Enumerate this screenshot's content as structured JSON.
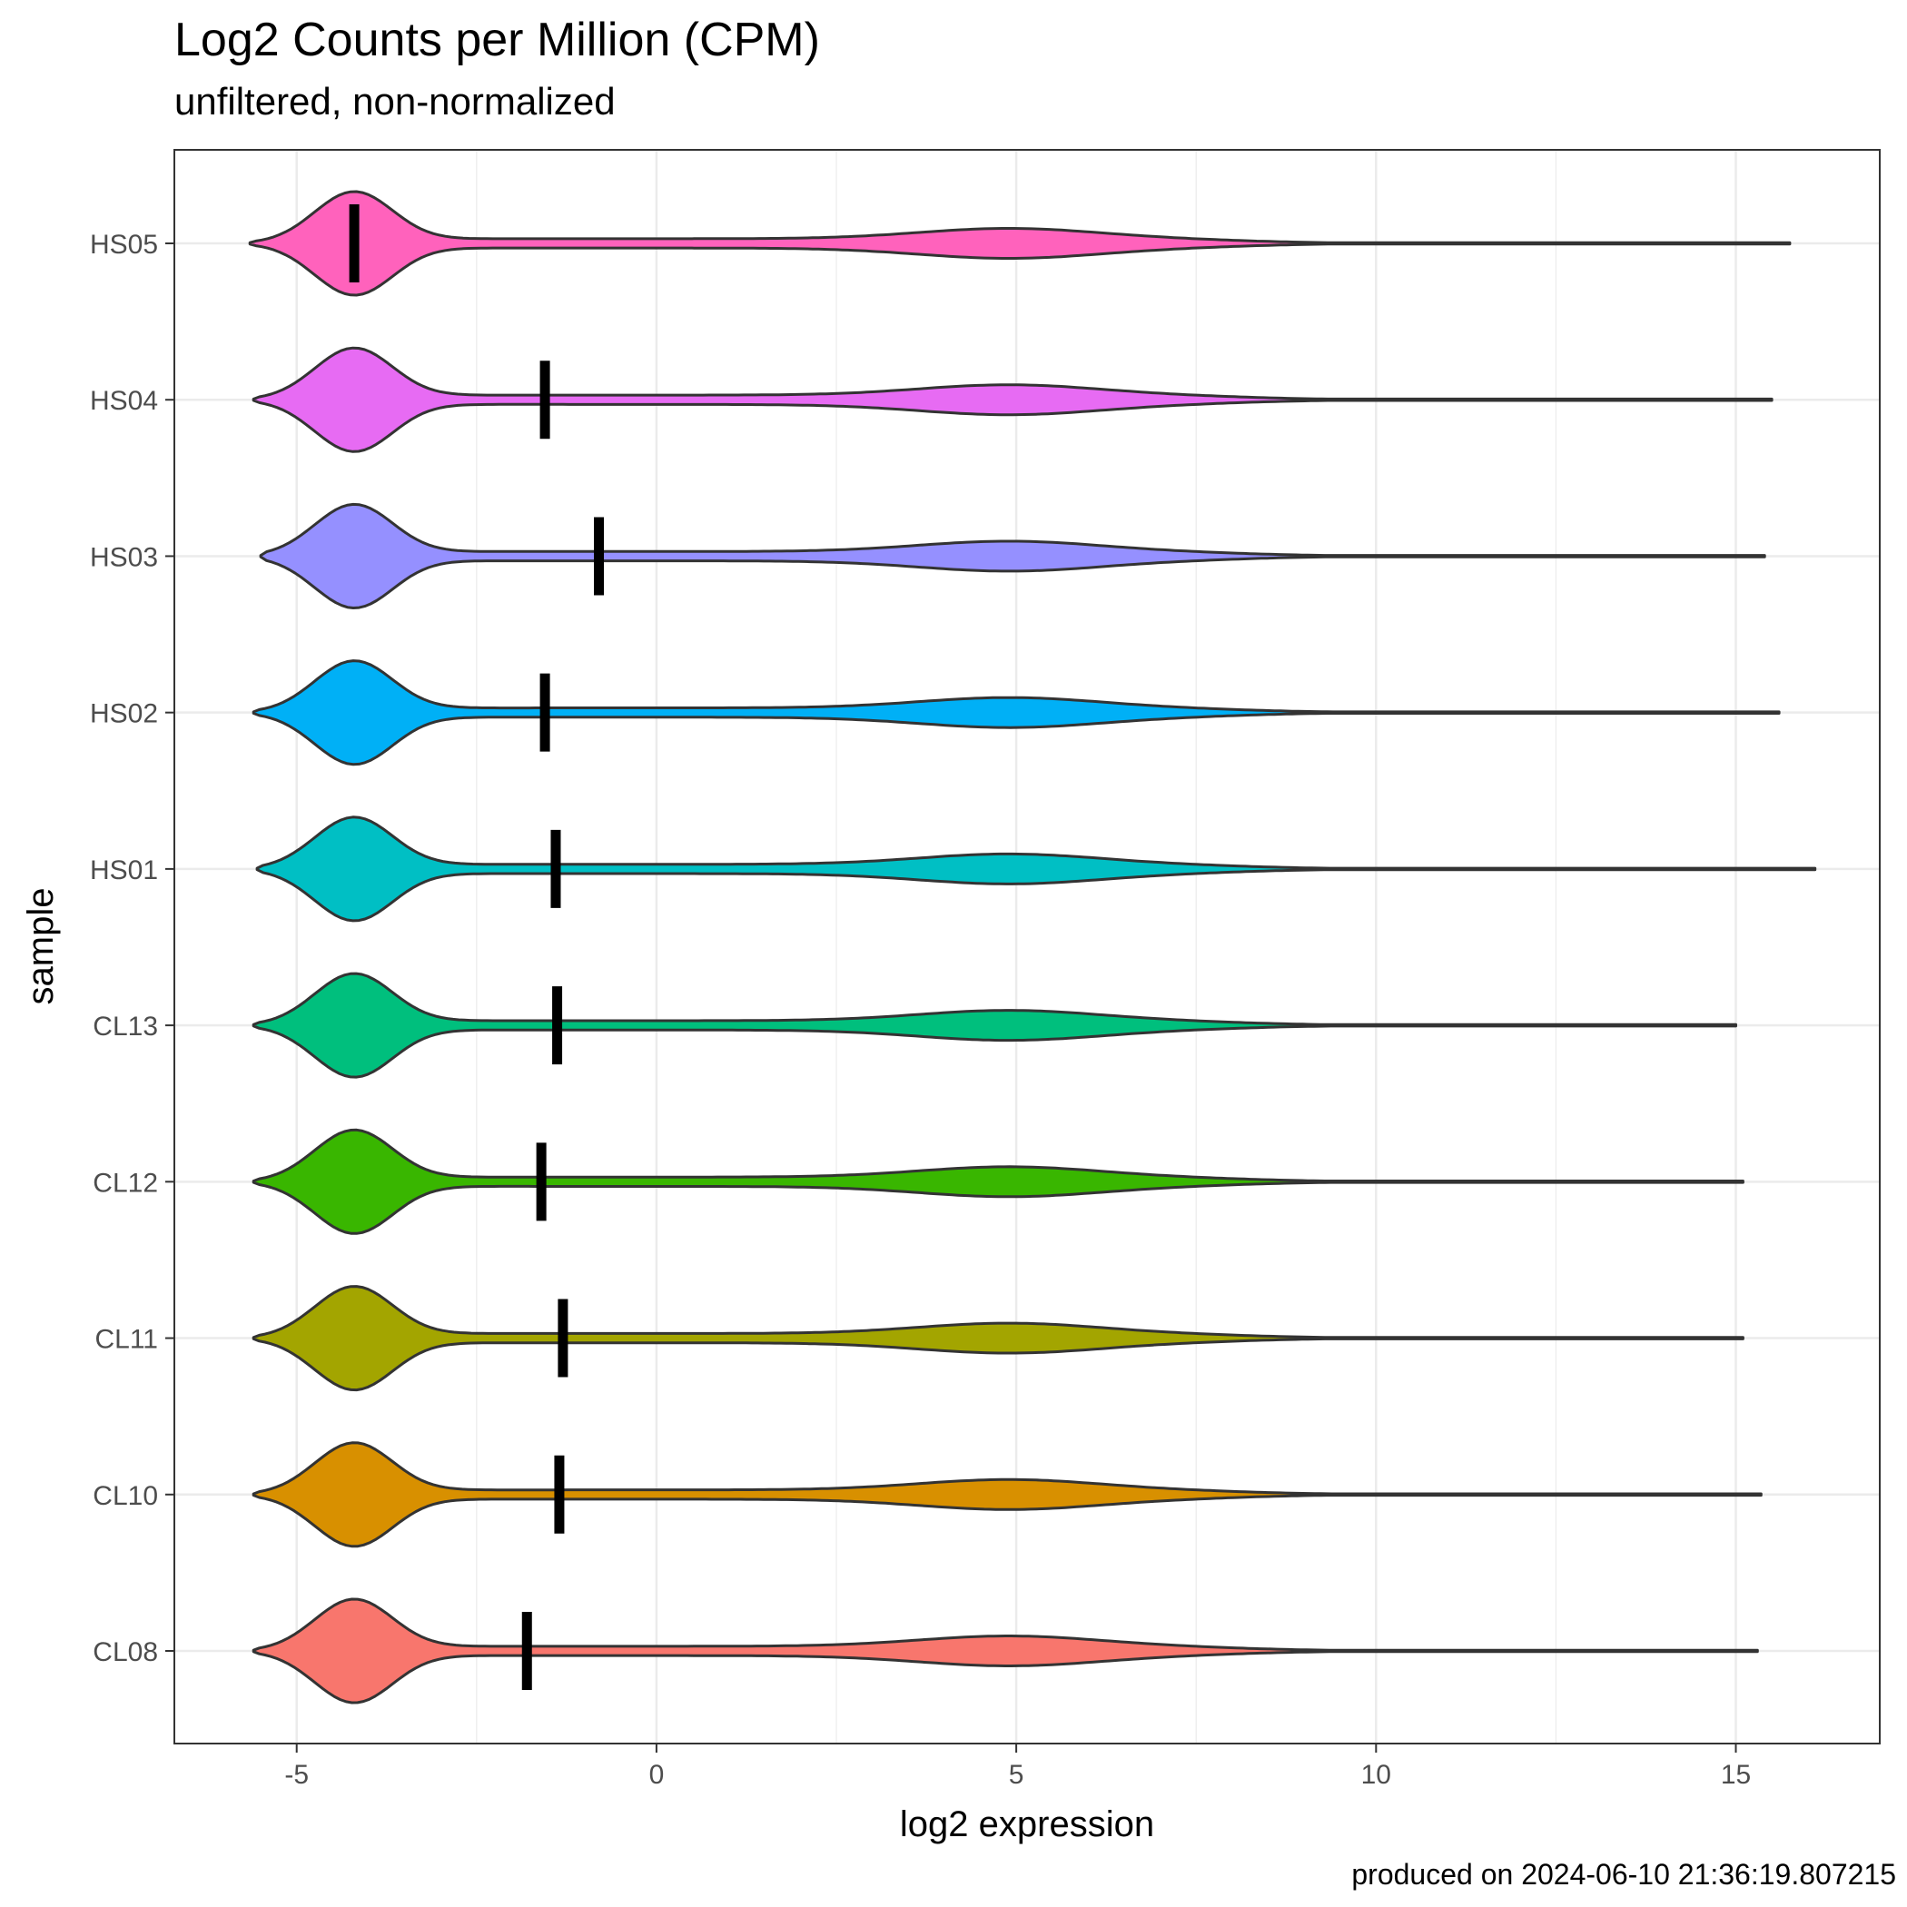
{
  "title": "Log2 Counts per Million (CPM)",
  "subtitle": "unfiltered, non-normalized",
  "caption": "produced on 2024-06-10 21:36:19.807215",
  "chart_data": {
    "type": "violin",
    "xlabel": "log2 expression",
    "ylabel": "sample",
    "xlim": [
      -6.7,
      17
    ],
    "xticks": [
      -5,
      0,
      5,
      10,
      15
    ],
    "xtick_labels": [
      "-5",
      "0",
      "5",
      "10",
      "15"
    ],
    "grid": true,
    "samples": [
      {
        "name": "CL08",
        "color": "#F8766D",
        "min": -5.6,
        "max": 15.3,
        "median": -1.8
      },
      {
        "name": "CL10",
        "color": "#D89000",
        "min": -5.6,
        "max": 15.35,
        "median": -1.35
      },
      {
        "name": "CL11",
        "color": "#A3A500",
        "min": -5.6,
        "max": 15.1,
        "median": -1.3
      },
      {
        "name": "CL12",
        "color": "#39B600",
        "min": -5.6,
        "max": 15.1,
        "median": -1.6
      },
      {
        "name": "CL13",
        "color": "#00BF7D",
        "min": -5.6,
        "max": 15.0,
        "median": -1.38
      },
      {
        "name": "HS01",
        "color": "#00BFC4",
        "min": -5.55,
        "max": 16.1,
        "median": -1.4
      },
      {
        "name": "HS02",
        "color": "#00B0F6",
        "min": -5.6,
        "max": 15.6,
        "median": -1.55
      },
      {
        "name": "HS03",
        "color": "#9590FF",
        "min": -5.5,
        "max": 15.4,
        "median": -0.8
      },
      {
        "name": "HS04",
        "color": "#E76BF3",
        "min": -5.6,
        "max": 15.5,
        "median": -1.55
      },
      {
        "name": "HS05",
        "color": "#FF62BC",
        "min": -5.65,
        "max": 15.75,
        "median": -4.2
      }
    ]
  }
}
